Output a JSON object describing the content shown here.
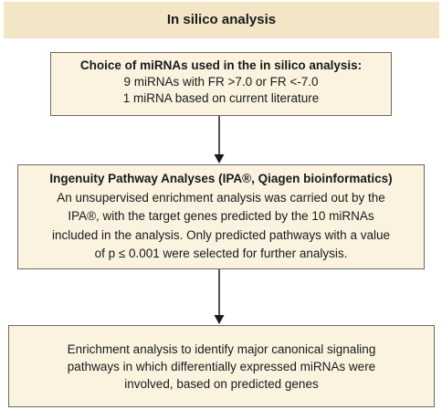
{
  "header": {
    "title": "In silico analysis"
  },
  "choice_box": {
    "title": "Choice of miRNAs used in the in silico analysis:",
    "lines": [
      "9 miRNAs with FR >7.0 or FR <-7.0",
      "1 miRNA based on current literature"
    ]
  },
  "ipa_box": {
    "title": "Ingenuity Pathway Analyses (IPA®, Qiagen bioinformatics)",
    "lines": [
      "An unsupervised enrichment analysis was carried out by the",
      "IPA®, with the target genes predicted by the 10 miRNAs",
      "included in the analysis. Only predicted pathways with a value",
      "of p ≤ 0.001 were selected for further analysis."
    ]
  },
  "enrichment_box": {
    "lines": [
      "Enrichment analysis to identify major canonical signaling",
      "pathways in which differentially expressed miRNAs were",
      "involved, based on predicted genes"
    ]
  },
  "colors": {
    "header_bg": "#f3e6c6",
    "box_bg": "#fbf3e0",
    "box_border": "#6f6a5f",
    "arrow": "#1a1a1a"
  }
}
